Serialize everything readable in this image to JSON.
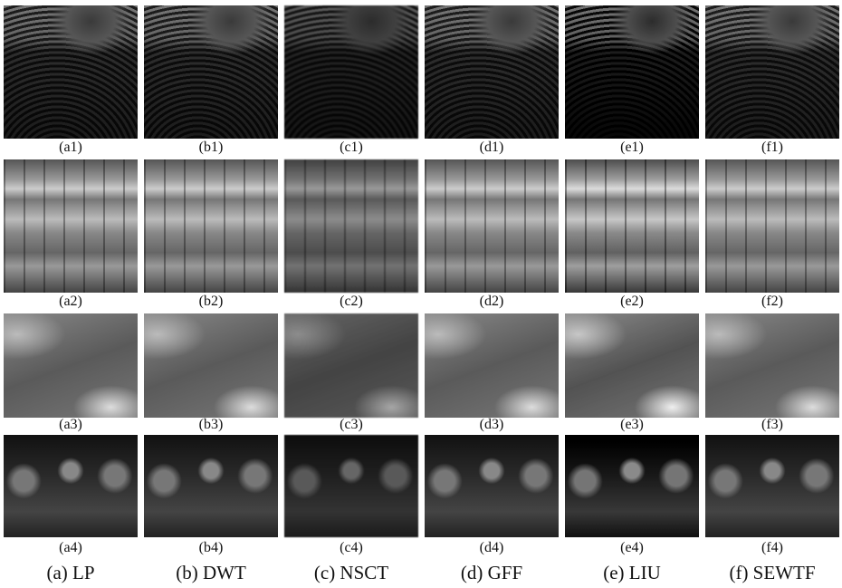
{
  "figure": {
    "columns": [
      {
        "label": "(a) LP",
        "panels": [
          "(a1)",
          "(a2)",
          "(a3)",
          "(a4)"
        ]
      },
      {
        "label": "(b) DWT",
        "panels": [
          "(b1)",
          "(b2)",
          "(b3)",
          "(b4)"
        ]
      },
      {
        "label": "(c) NSCT",
        "panels": [
          "(c1)",
          "(c2)",
          "(c3)",
          "(c4)"
        ]
      },
      {
        "label": "(d) GFF",
        "panels": [
          "(d1)",
          "(d2)",
          "(d3)",
          "(d4)"
        ]
      },
      {
        "label": "(e) LIU",
        "panels": [
          "(e1)",
          "(e2)",
          "(e3)",
          "(e4)"
        ]
      },
      {
        "label": "(f) SEWTF",
        "panels": [
          "(f1)",
          "(f2)",
          "(f3)",
          "(f4)"
        ]
      }
    ]
  }
}
